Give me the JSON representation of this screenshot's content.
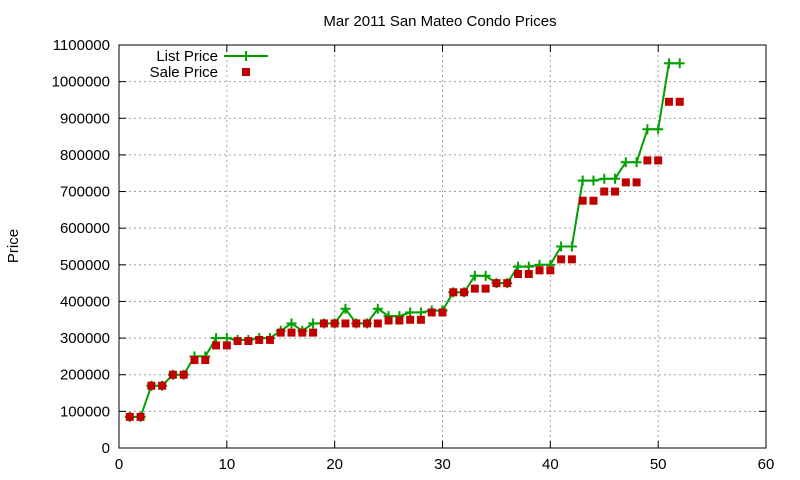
{
  "chart_data": {
    "type": "line",
    "title": "Mar 2011 San Mateo Condo Prices",
    "xlabel": "",
    "ylabel": "Price",
    "xlim": [
      0,
      60
    ],
    "ylim": [
      0,
      1100000
    ],
    "xticks": [
      0,
      10,
      20,
      30,
      40,
      50,
      60
    ],
    "yticks": [
      0,
      100000,
      200000,
      300000,
      400000,
      500000,
      600000,
      700000,
      800000,
      900000,
      1000000,
      1100000
    ],
    "grid": true,
    "legend_position": "top-left",
    "series": [
      {
        "name": "List Price",
        "kind": "line",
        "marker": "plus",
        "color": "#00a000",
        "x": [
          1,
          2,
          3,
          4,
          5,
          6,
          7,
          8,
          9,
          10,
          11,
          12,
          13,
          14,
          15,
          16,
          17,
          18,
          19,
          20,
          21,
          22,
          23,
          24,
          25,
          26,
          27,
          28,
          29,
          30,
          31,
          32,
          33,
          34,
          35,
          36,
          37,
          38,
          39,
          40,
          41,
          42,
          43,
          44,
          45,
          46,
          47,
          48,
          49,
          50,
          51,
          52
        ],
        "y": [
          85000,
          85000,
          170000,
          170000,
          200000,
          200000,
          250000,
          250000,
          300000,
          300000,
          295000,
          295000,
          300000,
          300000,
          320000,
          340000,
          320000,
          340000,
          340000,
          340000,
          380000,
          340000,
          340000,
          380000,
          360000,
          360000,
          370000,
          370000,
          375000,
          375000,
          425000,
          425000,
          470000,
          470000,
          450000,
          450000,
          495000,
          495000,
          500000,
          500000,
          550000,
          550000,
          730000,
          730000,
          735000,
          735000,
          780000,
          780000,
          870000,
          870000,
          1050000,
          1050000
        ]
      },
      {
        "name": "Sale Price",
        "kind": "scatter",
        "marker": "square",
        "color": "#c00000",
        "x": [
          1,
          2,
          3,
          4,
          5,
          6,
          7,
          8,
          9,
          10,
          11,
          12,
          13,
          14,
          15,
          16,
          17,
          18,
          19,
          20,
          21,
          22,
          23,
          24,
          25,
          26,
          27,
          28,
          29,
          30,
          31,
          32,
          33,
          34,
          35,
          36,
          37,
          38,
          39,
          40,
          41,
          42,
          43,
          44,
          45,
          46,
          47,
          48,
          49,
          50,
          51,
          52
        ],
        "y": [
          85000,
          85000,
          170000,
          170000,
          200000,
          200000,
          240000,
          240000,
          280000,
          280000,
          292000,
          292000,
          295000,
          295000,
          315000,
          315000,
          315000,
          315000,
          340000,
          340000,
          340000,
          340000,
          340000,
          340000,
          348000,
          348000,
          350000,
          350000,
          370000,
          370000,
          425000,
          425000,
          435000,
          435000,
          450000,
          450000,
          475000,
          475000,
          485000,
          485000,
          515000,
          515000,
          675000,
          675000,
          700000,
          700000,
          725000,
          725000,
          785000,
          785000,
          945000,
          945000
        ]
      }
    ]
  }
}
